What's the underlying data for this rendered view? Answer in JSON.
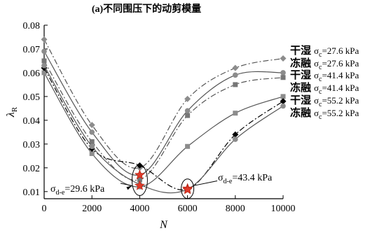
{
  "chart_data": {
    "type": "line",
    "title": "(a)不同围压下的动剪模量",
    "xlabel": "N",
    "ylabel": "λ_R",
    "x": [
      0,
      2000,
      4000,
      6000,
      8000,
      10000
    ],
    "xticks": [
      "0",
      "2000",
      "4000",
      "6000",
      "8000",
      "10000"
    ],
    "yticks": [
      "0.01",
      "0.02",
      "0.03",
      "0.04",
      "0.05",
      "0.06",
      "0.07",
      "0.08"
    ],
    "xlim": [
      0,
      10000
    ],
    "ylim": [
      0.007,
      0.08
    ],
    "grid": false,
    "legend_position": "right",
    "series": [
      {
        "name_prefix": "干湿",
        "name_suffix": "=27.6 kPa",
        "values": [
          0.074,
          0.038,
          0.02,
          0.049,
          0.062,
          0.066
        ],
        "marker": "diamond",
        "color": "#8c8c8c",
        "dash": "8,3,2,3"
      },
      {
        "name_prefix": "冻融",
        "name_suffix": "=27.6  kPa",
        "values": [
          0.069,
          0.035,
          0.017,
          0.044,
          0.059,
          0.06
        ],
        "marker": "circle",
        "color": "#8c8c8c",
        "dash": ""
      },
      {
        "name_prefix": "干湿",
        "name_suffix": "=41.4 kPa",
        "values": [
          0.065,
          0.031,
          0.015,
          0.042,
          0.055,
          0.058
        ],
        "marker": "square",
        "color": "#777777",
        "dash": "8,3,2,3"
      },
      {
        "name_prefix": "冻融",
        "name_suffix": "=41.4 kPa",
        "values": [
          0.06,
          0.026,
          0.012,
          0.029,
          0.043,
          0.05
        ],
        "marker": "square",
        "color": "#8c8c8c",
        "dash": ""
      },
      {
        "name_prefix": "干湿",
        "name_suffix": "=55.2 kPa",
        "values": [
          0.062,
          0.028,
          0.021,
          0.011,
          0.034,
          0.048
        ],
        "marker": "diamond",
        "color": "#000000",
        "dash": "8,3,2,3"
      },
      {
        "name_prefix": "冻融",
        "name_suffix": "=55.2 kPa",
        "values": [
          0.063,
          0.029,
          0.013,
          0.011,
          0.032,
          0.046
        ],
        "marker": "circle",
        "color": "#8c8c8c",
        "dash": ""
      }
    ],
    "stars": [
      {
        "x": 4000,
        "y": 0.017
      },
      {
        "x": 4000,
        "y": 0.0125
      },
      {
        "x": 6000,
        "y": 0.0113
      },
      {
        "x": 6000,
        "y": 0.0108
      }
    ],
    "annotations": [
      {
        "label": "σ",
        "sub": "d-e",
        "value": "=29.6 kPa"
      },
      {
        "label": "σ",
        "sub": "d-e",
        "value": "=43.4 kPa"
      }
    ],
    "legend_symbol": "σ",
    "legend_sub": "c"
  }
}
